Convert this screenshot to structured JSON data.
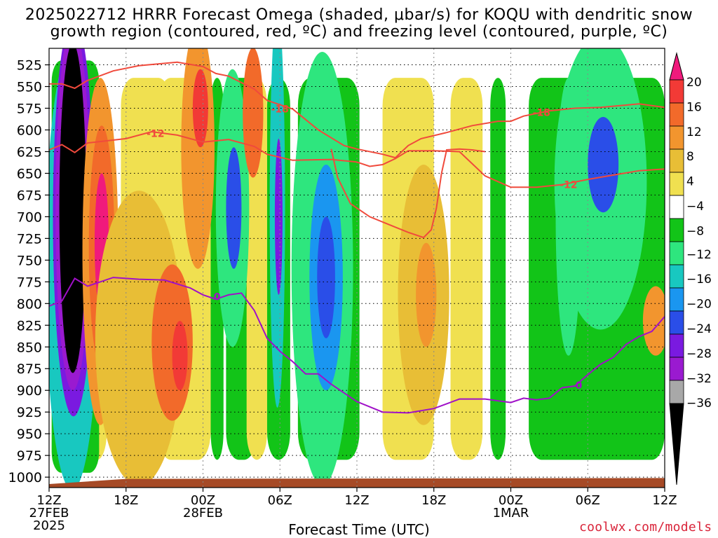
{
  "header": {
    "line1": "2025022712 HRRR Forecast Omega (shaded, μbar/s) for KOQU with dendritic snow",
    "line2": "growth region (contoured, red, ºC) and freezing level (contoured, purple, ºC)"
  },
  "credit": "coolwx.com/models",
  "chart_data": {
    "type": "heatmap",
    "xlabel": "Forecast Time (UTC)",
    "ylabel": "",
    "y_axis": "Pressure (mb), inverted",
    "ylim": [
      1012,
      506
    ],
    "xlim_hours": [
      0,
      48
    ],
    "x_ticks": [
      {
        "hour": 0,
        "lines": [
          "12Z",
          "27FEB",
          "2025"
        ]
      },
      {
        "hour": 6,
        "lines": [
          "18Z"
        ]
      },
      {
        "hour": 12,
        "lines": [
          "00Z",
          "28FEB"
        ]
      },
      {
        "hour": 18,
        "lines": [
          "06Z"
        ]
      },
      {
        "hour": 24,
        "lines": [
          "12Z"
        ]
      },
      {
        "hour": 30,
        "lines": [
          "18Z"
        ]
      },
      {
        "hour": 36,
        "lines": [
          "00Z",
          "1MAR"
        ]
      },
      {
        "hour": 42,
        "lines": [
          "06Z"
        ]
      },
      {
        "hour": 48,
        "lines": [
          "12Z"
        ]
      }
    ],
    "y_ticks": [
      525,
      550,
      575,
      600,
      625,
      650,
      675,
      700,
      725,
      750,
      775,
      800,
      825,
      850,
      875,
      900,
      925,
      950,
      975,
      1000
    ],
    "grid": true,
    "colorbar": {
      "labels": [
        "20",
        "16",
        "12",
        "8",
        "4",
        "−4",
        "−8",
        "−12",
        "−16",
        "−20",
        "−24",
        "−28",
        "−32",
        "−36"
      ],
      "colors": [
        "#f01a7c",
        "#f23a36",
        "#f26a2a",
        "#f2952e",
        "#e8be36",
        "#f0e050",
        "#ffffff",
        "#12c418",
        "#2ee67e",
        "#18c8c0",
        "#1a96f0",
        "#2a4ee8",
        "#7a1ae0",
        "#9a1ad0",
        "#a8a8a8",
        "#000000"
      ]
    },
    "omega_blobs": [
      {
        "h": 1.8,
        "p": 760,
        "rh": 2.1,
        "rp": 255,
        "v": -14
      },
      {
        "h": 1.9,
        "p": 700,
        "rh": 1.6,
        "rp": 230,
        "v": -24
      },
      {
        "h": 1.85,
        "p": 690,
        "rh": 1.35,
        "rp": 210,
        "v": -30
      },
      {
        "h": 1.85,
        "p": 690,
        "rh": 1.05,
        "rp": 190,
        "v": -40
      },
      {
        "h": 4.0,
        "p": 740,
        "rh": 1.4,
        "rp": 200,
        "v": 8
      },
      {
        "h": 4.1,
        "p": 735,
        "rh": 1.0,
        "rp": 140,
        "v": 14
      },
      {
        "h": 4.1,
        "p": 730,
        "rh": 0.55,
        "rp": 80,
        "v": 22
      },
      {
        "h": 5.1,
        "p": 870,
        "rh": 0.9,
        "rp": 70,
        "v": 16
      },
      {
        "h": 7.0,
        "p": 840,
        "rh": 3.4,
        "rp": 170,
        "v": 6
      },
      {
        "h": 9.6,
        "p": 845,
        "rh": 1.6,
        "rp": 90,
        "v": 12
      },
      {
        "h": 10.2,
        "p": 860,
        "rh": 0.6,
        "rp": 40,
        "v": 17
      },
      {
        "h": 11.6,
        "p": 620,
        "rh": 1.3,
        "rp": 140,
        "v": 9
      },
      {
        "h": 11.8,
        "p": 575,
        "rh": 0.6,
        "rp": 45,
        "v": 17
      },
      {
        "h": 14.3,
        "p": 690,
        "rh": 1.3,
        "rp": 160,
        "v": -10
      },
      {
        "h": 14.4,
        "p": 690,
        "rh": 0.6,
        "rp": 70,
        "v": -21
      },
      {
        "h": 15.9,
        "p": 580,
        "rh": 0.8,
        "rp": 75,
        "v": 12
      },
      {
        "h": 17.8,
        "p": 690,
        "rh": 0.6,
        "rp": 230,
        "v": -14
      },
      {
        "h": 17.9,
        "p": 700,
        "rh": 0.3,
        "rp": 90,
        "v": -24
      },
      {
        "h": 21.3,
        "p": 760,
        "rh": 2.4,
        "rp": 250,
        "v": -10
      },
      {
        "h": 21.6,
        "p": 770,
        "rh": 1.3,
        "rp": 130,
        "v": -17
      },
      {
        "h": 21.6,
        "p": 770,
        "rh": 0.7,
        "rp": 70,
        "v": -21
      },
      {
        "h": 29.2,
        "p": 790,
        "rh": 2.0,
        "rp": 150,
        "v": 6
      },
      {
        "h": 29.4,
        "p": 790,
        "rh": 0.8,
        "rp": 60,
        "v": 11
      },
      {
        "h": 43.0,
        "p": 660,
        "rh": 3.6,
        "rp": 170,
        "v": -10
      },
      {
        "h": 43.2,
        "p": 640,
        "rh": 1.2,
        "rp": 55,
        "v": -20
      },
      {
        "h": 40.5,
        "p": 700,
        "rh": 1.0,
        "rp": 160,
        "v": -8
      },
      {
        "h": 47.3,
        "p": 820,
        "rh": 1.0,
        "rp": 40,
        "v": 9
      }
    ],
    "contours": [
      {
        "label": "-12",
        "color": "#f04a3c",
        "points": [
          [
            0,
            623
          ],
          [
            1,
            617
          ],
          [
            2,
            626
          ],
          [
            3,
            615
          ],
          [
            6,
            610
          ],
          [
            8,
            602
          ],
          [
            10,
            606
          ],
          [
            12,
            614
          ],
          [
            14,
            611
          ],
          [
            16,
            619
          ],
          [
            17,
            628
          ],
          [
            19,
            635
          ],
          [
            22,
            634
          ],
          [
            24,
            637
          ],
          [
            25,
            642
          ],
          [
            26,
            640
          ],
          [
            27,
            633
          ],
          [
            28,
            624
          ],
          [
            30,
            624
          ],
          [
            32,
            625
          ],
          [
            34,
            653
          ],
          [
            36,
            666
          ],
          [
            38,
            666
          ],
          [
            40,
            663
          ],
          [
            42,
            657
          ],
          [
            44,
            652
          ],
          [
            46,
            647
          ],
          [
            48,
            645
          ]
        ],
        "label_at": [
          [
            8.3,
            604
          ],
          [
            40.5,
            663
          ]
        ]
      },
      {
        "label": "-18",
        "color": "#f04a3c",
        "points": [
          [
            0,
            547
          ],
          [
            1,
            547
          ],
          [
            2,
            552
          ],
          [
            3,
            543
          ],
          [
            5,
            532
          ],
          [
            7,
            526
          ],
          [
            10,
            522
          ],
          [
            12,
            527
          ],
          [
            13,
            535
          ],
          [
            14,
            538
          ],
          [
            16,
            553
          ],
          [
            17,
            566
          ],
          [
            19,
            576
          ],
          [
            21,
            600
          ],
          [
            23,
            618
          ],
          [
            24,
            622
          ],
          [
            26,
            628
          ],
          [
            27,
            632
          ],
          [
            28,
            618
          ],
          [
            29,
            610
          ],
          [
            31,
            603
          ],
          [
            33,
            595
          ],
          [
            35,
            590
          ],
          [
            36,
            590
          ],
          [
            37,
            584
          ],
          [
            39,
            578
          ],
          [
            41,
            575
          ],
          [
            43,
            574
          ],
          [
            46,
            570
          ],
          [
            48,
            574
          ]
        ],
        "label_at": [
          [
            18,
            576
          ],
          [
            38.4,
            580
          ]
        ]
      },
      {
        "label": "-18",
        "color": "#f04a3c",
        "points": [
          [
            22,
            622
          ],
          [
            22.5,
            655
          ],
          [
            23.5,
            685
          ],
          [
            25,
            700
          ],
          [
            27,
            712
          ],
          [
            28,
            718
          ],
          [
            29.2,
            724
          ],
          [
            29.8,
            715
          ],
          [
            30.2,
            690
          ],
          [
            30.6,
            650
          ],
          [
            31,
            623
          ],
          [
            32,
            622
          ],
          [
            33,
            623
          ],
          [
            34,
            625
          ]
        ],
        "label_at": []
      },
      {
        "label": "0",
        "color": "#a010c8",
        "points": [
          [
            0,
            803
          ],
          [
            1,
            797
          ],
          [
            2,
            771
          ],
          [
            3,
            780
          ],
          [
            5,
            770
          ],
          [
            7,
            772
          ],
          [
            9,
            773
          ],
          [
            11,
            782
          ],
          [
            12,
            790
          ],
          [
            13,
            795
          ],
          [
            14,
            790
          ],
          [
            15,
            788
          ],
          [
            16,
            808
          ],
          [
            17,
            840
          ],
          [
            18,
            855
          ],
          [
            19,
            867
          ],
          [
            20,
            881
          ],
          [
            21,
            881
          ],
          [
            22,
            893
          ],
          [
            24,
            913
          ],
          [
            26,
            925
          ],
          [
            28,
            926
          ],
          [
            30,
            921
          ],
          [
            32,
            910
          ],
          [
            34,
            910
          ],
          [
            36,
            914
          ],
          [
            37,
            909
          ],
          [
            38,
            911
          ],
          [
            39,
            909
          ],
          [
            40,
            897
          ],
          [
            41,
            895
          ],
          [
            42,
            882
          ],
          [
            43,
            870
          ],
          [
            44,
            862
          ],
          [
            45,
            847
          ],
          [
            46,
            838
          ],
          [
            47,
            832
          ],
          [
            48,
            815
          ]
        ],
        "label_at": [
          [
            13.1,
            792
          ],
          [
            41.3,
            894
          ]
        ]
      }
    ],
    "terrain": {
      "color": "#a64a26",
      "pressure_top": 1002,
      "pressure_bottom": 1012
    }
  }
}
